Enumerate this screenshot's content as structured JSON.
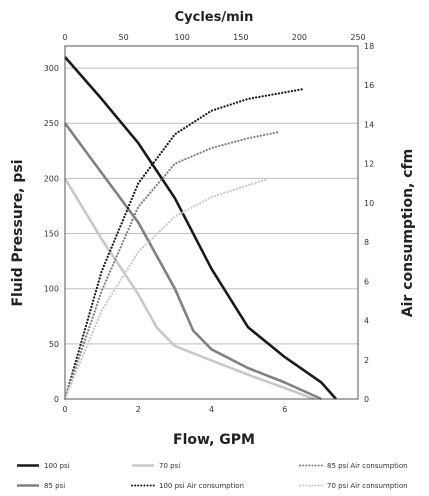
{
  "chart_data": {
    "type": "line",
    "xlabel": "Flow, GPM",
    "x2label": "Cycles/min",
    "ylabel": "Fluid Pressure, psi",
    "y2label": "Air consumption, cfm",
    "xlim": [
      0,
      8
    ],
    "xticks": [
      "0",
      "2",
      "4",
      "6"
    ],
    "x2lim": [
      0,
      250
    ],
    "x2ticks": [
      "0",
      "50",
      "100",
      "150",
      "200",
      "250"
    ],
    "ylim": [
      0,
      320
    ],
    "yticks": [
      "0",
      "50",
      "100",
      "150",
      "200",
      "250",
      "300"
    ],
    "y2lim": [
      0,
      18
    ],
    "y2ticks": [
      "0",
      "2",
      "4",
      "6",
      "8",
      "10",
      "12",
      "14",
      "16",
      "18"
    ],
    "grid": true,
    "legend_position": "bottom",
    "series": [
      {
        "name": "100 psi",
        "axis": "left",
        "style": "solid",
        "color": "#1a1a1a",
        "x": [
          0,
          1,
          2,
          3,
          4,
          5,
          6,
          7,
          7.4
        ],
        "y": [
          310,
          272,
          232,
          182,
          118,
          65,
          38,
          15,
          0
        ]
      },
      {
        "name": "85 psi",
        "axis": "left",
        "style": "solid",
        "color": "#808080",
        "x": [
          0,
          1,
          2,
          3,
          3.5,
          4,
          5,
          6,
          7
        ],
        "y": [
          250,
          205,
          160,
          100,
          62,
          45,
          28,
          15,
          0
        ]
      },
      {
        "name": "70 psi",
        "axis": "left",
        "style": "solid",
        "color": "#c8c8c8",
        "x": [
          0,
          1,
          2,
          2.5,
          3,
          4,
          5,
          6,
          6.8
        ],
        "y": [
          200,
          145,
          95,
          65,
          48,
          35,
          22,
          10,
          0
        ]
      },
      {
        "name": "100 psi Air consumption",
        "axis": "right",
        "style": "dotted",
        "color": "#1a1a1a",
        "x": [
          0,
          1,
          2,
          3,
          4,
          5,
          6.5
        ],
        "y": [
          0,
          6.5,
          11,
          13.5,
          14.7,
          15.3,
          15.8
        ]
      },
      {
        "name": "85 psi Air consumption",
        "axis": "right",
        "style": "dotted",
        "color": "#808080",
        "x": [
          0,
          1,
          2,
          3,
          4,
          5,
          5.8
        ],
        "y": [
          0,
          5.5,
          9.8,
          12,
          12.8,
          13.3,
          13.6
        ]
      },
      {
        "name": "70 psi Air consumption",
        "axis": "right",
        "style": "dotted",
        "color": "#c8c8c8",
        "x": [
          0,
          1,
          2,
          3,
          4,
          5,
          5.5
        ],
        "y": [
          0,
          4.5,
          7.5,
          9.3,
          10.3,
          10.9,
          11.2
        ]
      }
    ]
  }
}
